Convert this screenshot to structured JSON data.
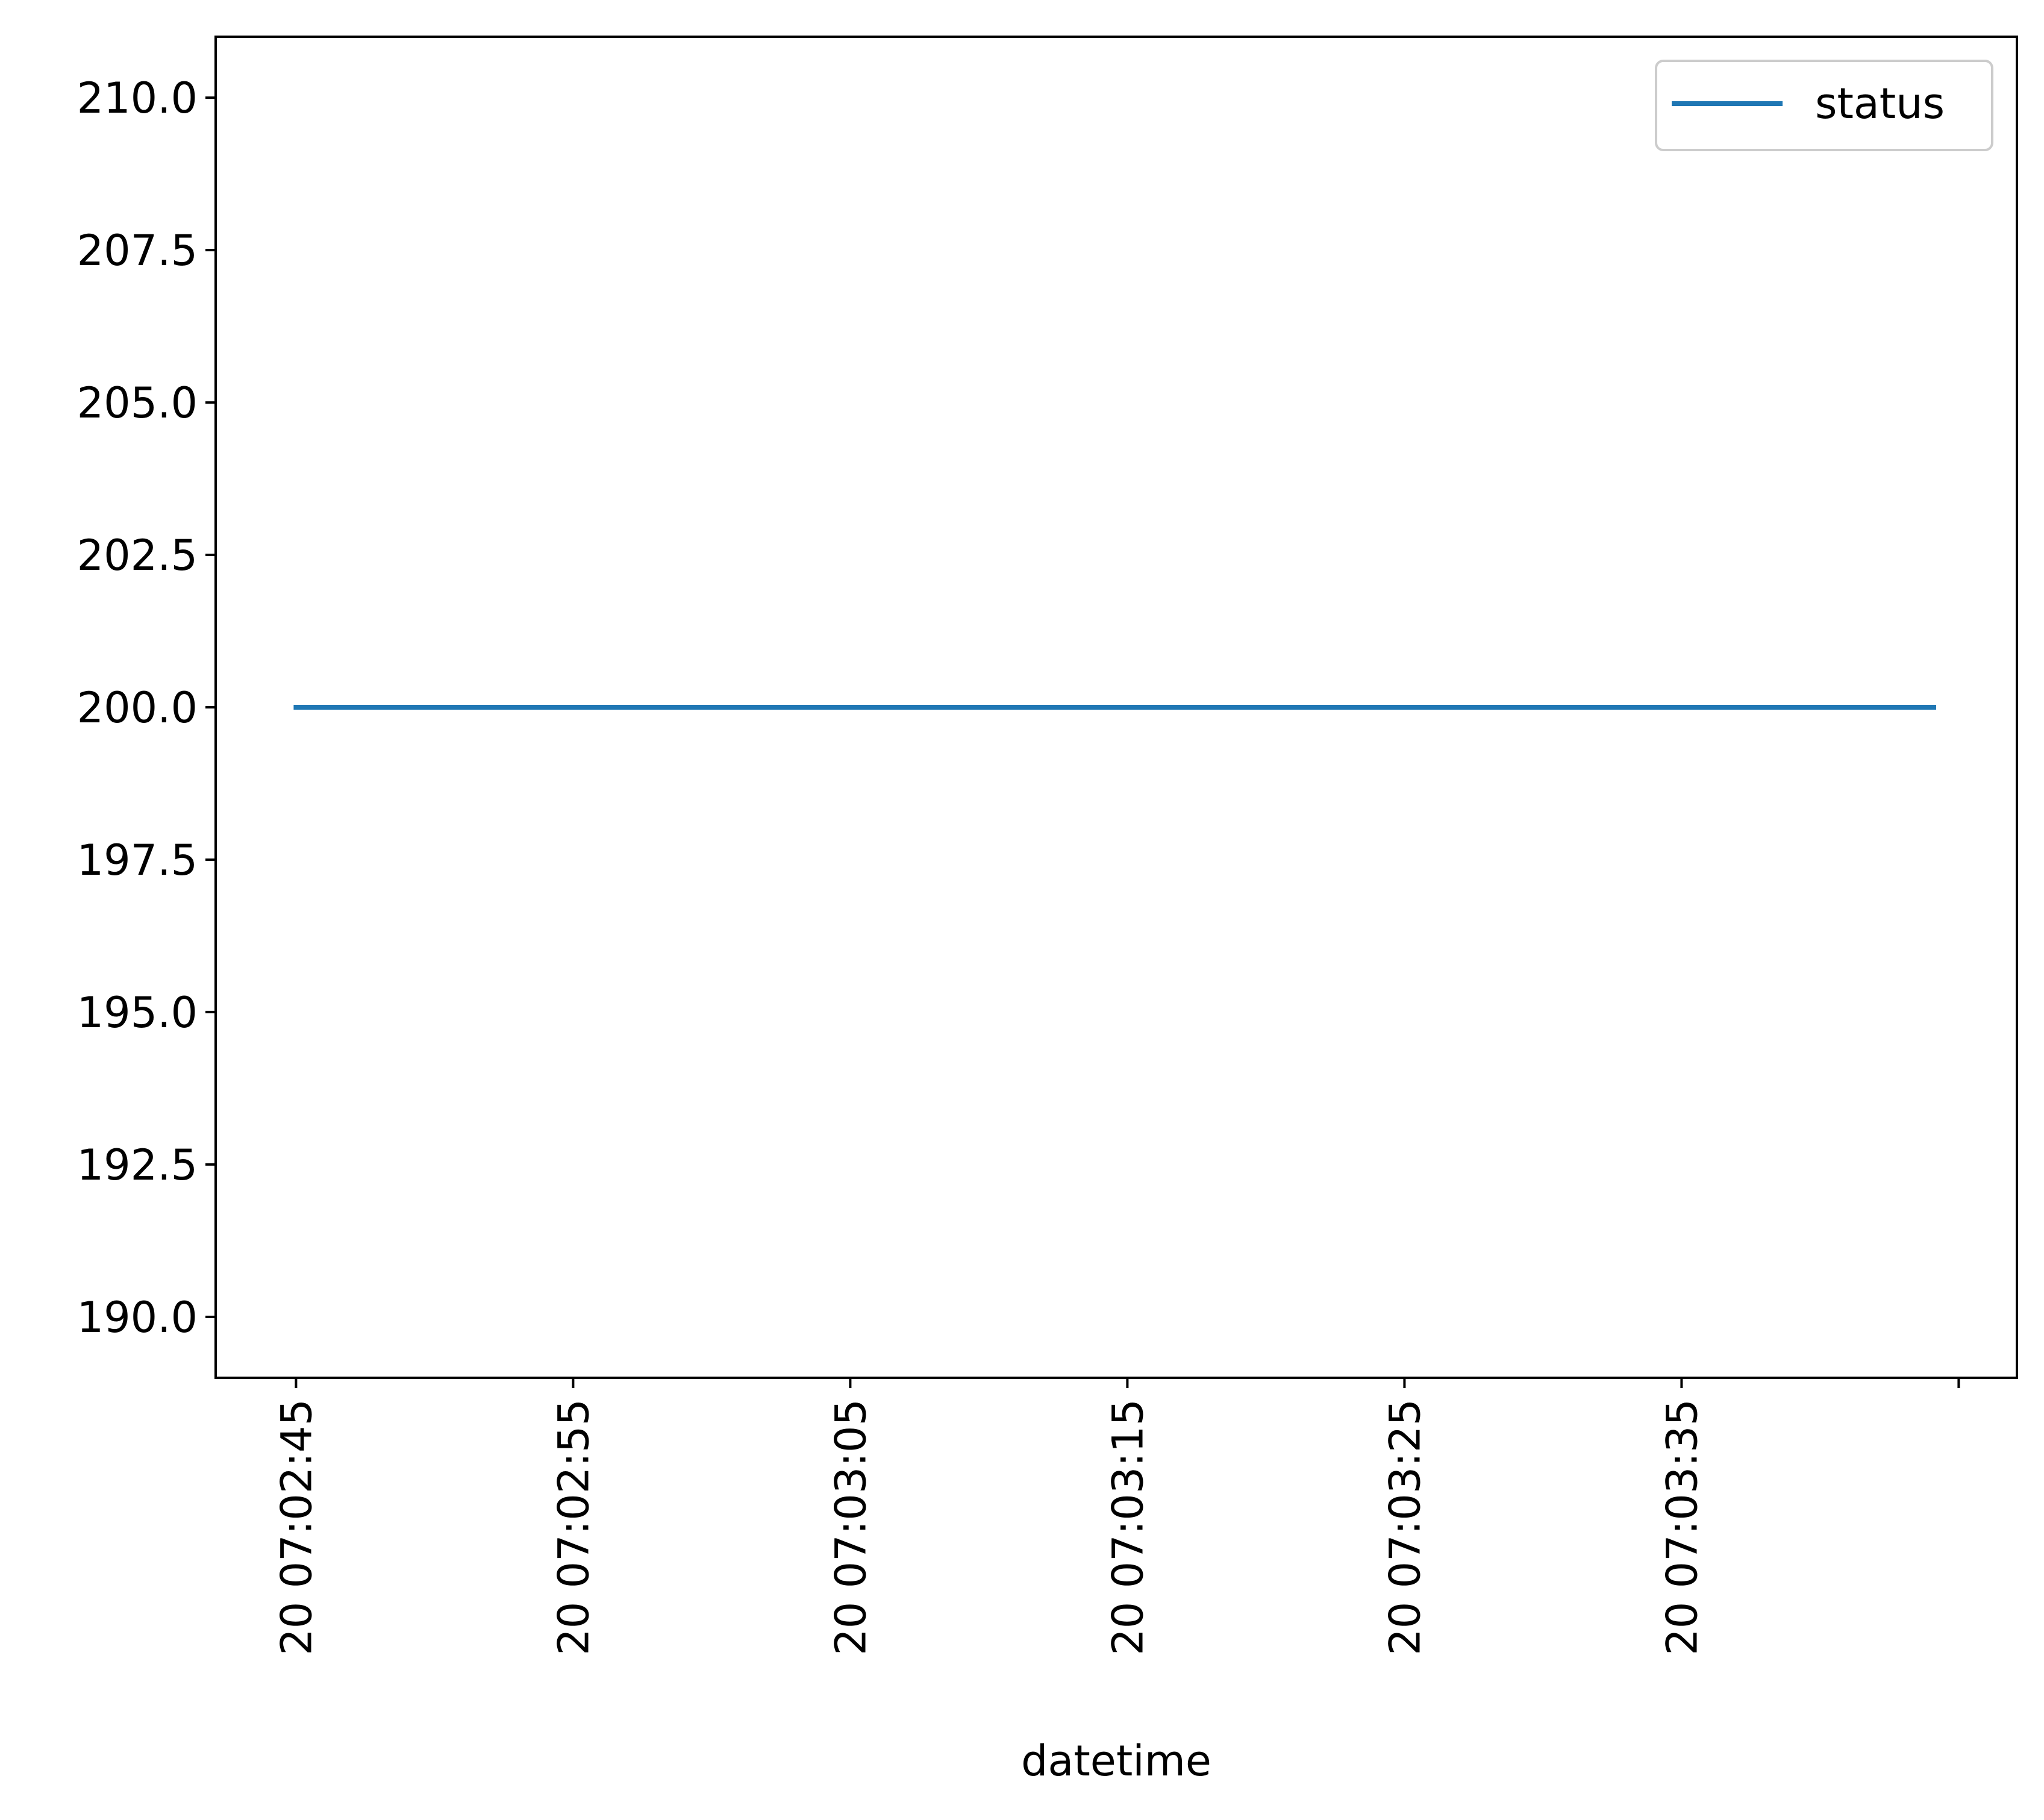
{
  "chart_data": {
    "type": "line",
    "title": "",
    "xlabel": "datetime",
    "ylabel": "",
    "x_tick_labels": [
      "20 07:02:45",
      "20 07:02:55",
      "20 07:03:05",
      "20 07:03:15",
      "20 07:03:25",
      "20 07:03:35",
      ""
    ],
    "x_tick_values_seconds": [
      0,
      10,
      20,
      30,
      40,
      50,
      60
    ],
    "x_range_seconds": [
      -2.9,
      62.1
    ],
    "y_tick_labels": [
      "190.0",
      "192.5",
      "195.0",
      "197.5",
      "200.0",
      "202.5",
      "205.0",
      "207.5",
      "210.0"
    ],
    "y_tick_values": [
      190.0,
      192.5,
      195.0,
      197.5,
      200.0,
      202.5,
      205.0,
      207.5,
      210.0
    ],
    "ylim": [
      189.0,
      211.0
    ],
    "series": [
      {
        "name": "status",
        "color": "#1f77b4",
        "x_seconds": [
          0,
          59.1
        ],
        "values": [
          200,
          200
        ]
      }
    ],
    "legend": {
      "position": "top-right",
      "entries": [
        "status"
      ]
    },
    "grid": false
  }
}
